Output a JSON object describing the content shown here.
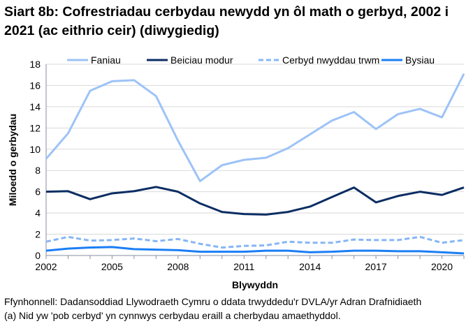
{
  "title": "Siart 8b: Cofrestriadau cerbydau newydd yn ôl math o gerbyd, 2002 i 2021 (ac eithrio ceir) (diwygiedig)",
  "footnotes": [
    "Ffynhonnell: Dadansoddiad Llywodraeth Cymru o ddata trwyddedu'r DVLA/yr Adran Drafnidiaeth",
    "(a) Nid yw 'pob cerbyd' yn cynnwys cerbydau eraill a cherbydau amaethyddol."
  ],
  "chart_data": {
    "type": "line",
    "xlabel": "Blywyddn",
    "ylabel": "Miloedd o gerbydau",
    "xlim": [
      2002,
      2021
    ],
    "ylim": [
      0,
      18
    ],
    "yticks": [
      0,
      2,
      4,
      6,
      8,
      10,
      12,
      14,
      16,
      18
    ],
    "xticks": [
      2002,
      2005,
      2008,
      2011,
      2014,
      2017,
      2020
    ],
    "grid": "horizontal",
    "legend": "top",
    "x": [
      2002,
      2003,
      2004,
      2005,
      2006,
      2007,
      2008,
      2009,
      2010,
      2011,
      2012,
      2013,
      2014,
      2015,
      2016,
      2017,
      2018,
      2019,
      2020,
      2021
    ],
    "series": [
      {
        "name": "Faniau",
        "color": "#9dc3f7",
        "dash": false,
        "width": 3,
        "values": [
          9.1,
          11.5,
          15.5,
          16.4,
          16.5,
          15.0,
          10.8,
          7.0,
          8.5,
          9.0,
          9.2,
          10.1,
          11.4,
          12.7,
          13.5,
          11.9,
          13.3,
          13.8,
          13.0,
          17.1
        ]
      },
      {
        "name": "Beiciau modur",
        "color": "#0b2d63",
        "dash": false,
        "width": 3,
        "values": [
          6.0,
          6.05,
          5.3,
          5.85,
          6.05,
          6.45,
          6.0,
          4.9,
          4.1,
          3.9,
          3.85,
          4.1,
          4.6,
          5.5,
          6.4,
          5.0,
          5.6,
          6.0,
          5.7,
          6.4
        ]
      },
      {
        "name": "Cerbyd nwyddau trwm",
        "color": "#86b6f5",
        "dash": true,
        "width": 3,
        "values": [
          1.3,
          1.75,
          1.4,
          1.45,
          1.6,
          1.35,
          1.55,
          1.1,
          0.75,
          0.9,
          0.95,
          1.3,
          1.2,
          1.2,
          1.5,
          1.45,
          1.45,
          1.75,
          1.2,
          1.45
        ]
      },
      {
        "name": "Bysiau",
        "color": "#1a7ef5",
        "dash": false,
        "width": 3,
        "values": [
          0.45,
          0.65,
          0.75,
          0.8,
          0.6,
          0.55,
          0.5,
          0.35,
          0.35,
          0.35,
          0.45,
          0.45,
          0.3,
          0.35,
          0.45,
          0.45,
          0.4,
          0.4,
          0.3,
          0.2
        ]
      }
    ]
  }
}
